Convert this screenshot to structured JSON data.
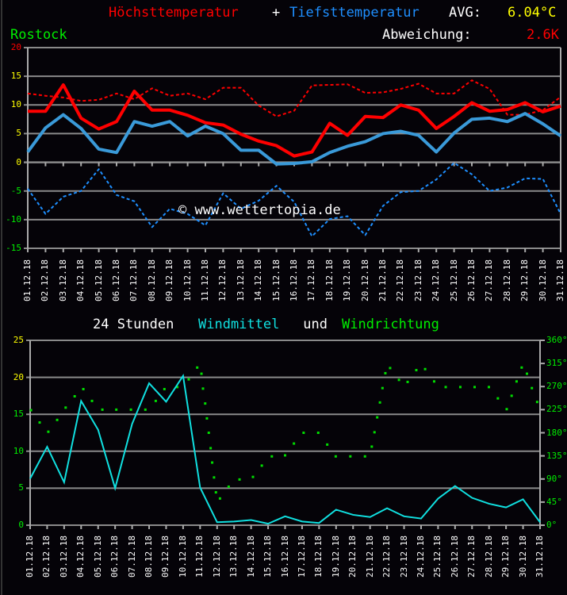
{
  "header": {
    "title_max": "Höchsttemperatur",
    "title_plus": "+",
    "title_min": "Tiefsttemperatur",
    "avg_label": "AVG:",
    "avg_value": "6.04°C",
    "station": "Rostock",
    "deviation_label": "Abweichung:",
    "deviation_value": "2.6K"
  },
  "watermark": "© www.wettertopia.de",
  "wind_title": {
    "part1": "24 Stunden ",
    "part2": "Windmittel",
    "part3": " und ",
    "part4": "Windrichtung"
  },
  "colors": {
    "max": "#ff0000",
    "min": "#3a9ad9",
    "min_mean": "#1e8fff",
    "wind_speed": "#10e0e0",
    "wind_dir": "#00dd00",
    "yellow": "#ffff00",
    "green": "#00ee00",
    "grid": "#8a8a8a"
  },
  "chart_data": [
    {
      "type": "line",
      "categories": [
        "01.12.18",
        "02.12.18",
        "03.12.18",
        "04.12.18",
        "05.12.18",
        "06.12.18",
        "07.12.18",
        "08.12.18",
        "09.12.18",
        "10.12.18",
        "11.12.18",
        "12.12.18",
        "13.12.18",
        "14.12.18",
        "15.12.18",
        "16.12.18",
        "17.12.18",
        "18.12.18",
        "19.12.18",
        "20.12.18",
        "21.12.18",
        "22.12.18",
        "23.12.18",
        "24.12.18",
        "25.12.18",
        "26.12.18",
        "27.12.18",
        "28.12.18",
        "29.12.18",
        "30.12.18",
        "31.12.18"
      ],
      "ylim": [
        -15,
        20
      ],
      "yticks": [
        {
          "v": 20,
          "label": "20",
          "color": "#ff0000"
        },
        {
          "v": 15,
          "label": "15",
          "color": "#ffff00"
        },
        {
          "v": 10,
          "label": "10",
          "color": "#ffff00"
        },
        {
          "v": 5,
          "label": "5",
          "color": "#ffff00"
        },
        {
          "v": 0,
          "label": "0",
          "color": "#ffff00"
        },
        {
          "v": -5,
          "label": "-5",
          "color": "#00ee00"
        },
        {
          "v": -10,
          "label": "-10",
          "color": "#00ee00"
        },
        {
          "v": -15,
          "label": "-15",
          "color": "#00ee00"
        }
      ],
      "grid": true,
      "series": [
        {
          "key": "max_mean",
          "style": "dashed",
          "color": "#ff0000",
          "values": [
            12.0,
            11.6,
            11.3,
            10.7,
            10.9,
            12.0,
            11.0,
            12.9,
            11.6,
            12.0,
            11.0,
            13.0,
            13.0,
            9.9,
            8.0,
            9.0,
            13.4,
            13.5,
            13.6,
            12.1,
            12.2,
            12.8,
            13.7,
            12.0,
            12.0,
            14.3,
            12.8,
            8.3,
            8.3,
            9.1,
            11.4
          ]
        },
        {
          "key": "min_mean",
          "style": "dashed",
          "color": "#1e8fff",
          "values": [
            -4.6,
            -9.0,
            -6.0,
            -5.0,
            -1.2,
            -5.7,
            -6.8,
            -11.3,
            -8.1,
            -9.0,
            -11.0,
            -5.4,
            -8.1,
            -6.7,
            -4.1,
            -6.9,
            -12.9,
            -9.9,
            -9.4,
            -12.7,
            -7.6,
            -5.2,
            -5.0,
            -3.0,
            -0.1,
            -2.1,
            -5.0,
            -4.4,
            -2.8,
            -2.9,
            -9.0
          ]
        },
        {
          "key": "min",
          "style": "solid",
          "color": "#3a9ad9",
          "values": [
            1.8,
            6.0,
            8.3,
            5.9,
            2.3,
            1.7,
            7.1,
            6.3,
            7.1,
            4.6,
            6.3,
            5.0,
            2.1,
            2.1,
            -0.3,
            -0.2,
            0.1,
            1.7,
            2.8,
            3.6,
            5.0,
            5.4,
            4.7,
            1.8,
            5.1,
            7.5,
            7.7,
            7.1,
            8.5,
            6.7,
            4.6
          ]
        },
        {
          "key": "max",
          "style": "solid",
          "color": "#ff0000",
          "values": [
            8.9,
            8.9,
            13.5,
            7.7,
            5.8,
            7.1,
            12.4,
            9.1,
            9.1,
            8.2,
            6.9,
            6.5,
            4.9,
            3.7,
            2.9,
            1.1,
            1.8,
            6.8,
            4.7,
            8.0,
            7.8,
            10.0,
            9.1,
            5.9,
            8.0,
            10.4,
            8.9,
            9.2,
            10.4,
            8.8,
            9.8
          ]
        }
      ]
    },
    {
      "type": "line",
      "categories": [
        "01.12.18",
        "02.12.18",
        "03.12.18",
        "04.12.18",
        "05.12.18",
        "06.12.18",
        "07.12.18",
        "08.12.18",
        "09.12.18",
        "10.12.18",
        "11.12.18",
        "12.12.18",
        "13.12.18",
        "14.12.18",
        "15.12.18",
        "16.12.18",
        "17.12.18",
        "18.12.18",
        "19.12.18",
        "20.12.18",
        "21.12.18",
        "22.12.18",
        "23.12.18",
        "24.12.18",
        "25.12.18",
        "26.12.18",
        "27.12.18",
        "28.12.18",
        "29.12.18",
        "30.12.18",
        "31.12.18"
      ],
      "ylim": [
        0,
        25
      ],
      "y2lim": [
        0,
        360
      ],
      "yticks": [
        {
          "v": 25,
          "label": "25",
          "color": "#ffff00"
        },
        {
          "v": 20,
          "label": "20",
          "color": "#ffff00"
        },
        {
          "v": 15,
          "label": "15",
          "color": "#00ee00"
        },
        {
          "v": 10,
          "label": "10",
          "color": "#00ee00"
        },
        {
          "v": 5,
          "label": "5",
          "color": "#00ee00"
        },
        {
          "v": 0,
          "label": "0",
          "color": "#00ee00"
        }
      ],
      "y2ticks": [
        "0°",
        "45°",
        "90°",
        "135°",
        "180°",
        "225°",
        "270°",
        "315°",
        "360°"
      ],
      "grid": true,
      "wind_speed": [
        6.3,
        10.6,
        5.8,
        16.8,
        12.9,
        5.0,
        13.7,
        19.2,
        16.7,
        20.2,
        5.1,
        0.4,
        0.5,
        0.7,
        0.2,
        1.2,
        0.5,
        0.3,
        2.1,
        1.4,
        1.1,
        2.3,
        1.2,
        0.9,
        3.6,
        5.3,
        3.7,
        2.9,
        2.4,
        3.5,
        0.4
      ],
      "wind_direction_points": [
        [
          1.05,
          224
        ],
        [
          1.56,
          200
        ],
        [
          2.07,
          182
        ],
        [
          2.59,
          205
        ],
        [
          3.09,
          229
        ],
        [
          3.62,
          251
        ],
        [
          4.13,
          265
        ],
        [
          4.64,
          242
        ],
        [
          5.25,
          225
        ],
        [
          6.07,
          225
        ],
        [
          6.93,
          225
        ],
        [
          7.78,
          225
        ],
        [
          8.39,
          242
        ],
        [
          8.9,
          265
        ],
        [
          9.66,
          269
        ],
        [
          10.33,
          284
        ],
        [
          10.83,
          307
        ],
        [
          11.08,
          295
        ],
        [
          11.17,
          266
        ],
        [
          11.3,
          237
        ],
        [
          11.4,
          208
        ],
        [
          11.51,
          180
        ],
        [
          11.62,
          150
        ],
        [
          11.71,
          122
        ],
        [
          11.82,
          93
        ],
        [
          11.93,
          64
        ],
        [
          12.17,
          52
        ],
        [
          12.68,
          75
        ],
        [
          13.32,
          89
        ],
        [
          14.11,
          94
        ],
        [
          14.63,
          116
        ],
        [
          15.22,
          134
        ],
        [
          16.0,
          136
        ],
        [
          16.52,
          159
        ],
        [
          17.09,
          180
        ],
        [
          17.95,
          180
        ],
        [
          18.48,
          157
        ],
        [
          18.98,
          134
        ],
        [
          19.84,
          134
        ],
        [
          20.7,
          134
        ],
        [
          21.1,
          153
        ],
        [
          21.26,
          181
        ],
        [
          21.42,
          210
        ],
        [
          21.58,
          239
        ],
        [
          21.73,
          267
        ],
        [
          21.9,
          296
        ],
        [
          22.18,
          306
        ],
        [
          22.7,
          283
        ],
        [
          23.21,
          279
        ],
        [
          23.72,
          302
        ],
        [
          24.24,
          304
        ],
        [
          24.77,
          280
        ],
        [
          25.45,
          269
        ],
        [
          26.31,
          269
        ],
        [
          27.15,
          269
        ],
        [
          27.99,
          269
        ],
        [
          28.52,
          247
        ],
        [
          29.04,
          226
        ],
        [
          29.33,
          252
        ],
        [
          29.62,
          280
        ],
        [
          29.92,
          307
        ],
        [
          30.23,
          295
        ],
        [
          30.52,
          267
        ],
        [
          30.83,
          240
        ]
      ]
    }
  ]
}
